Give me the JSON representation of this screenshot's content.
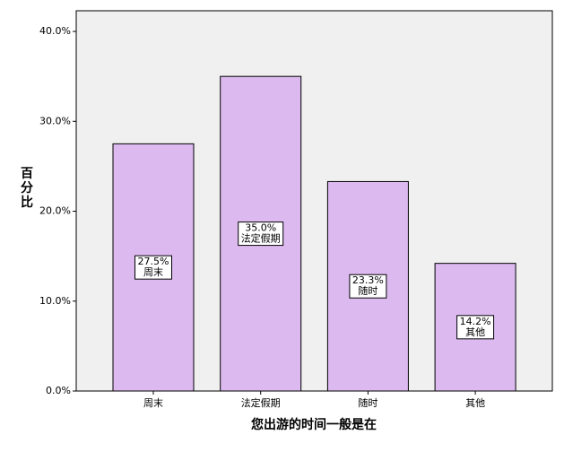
{
  "chart_data": {
    "type": "bar",
    "x_label": "您出游的时间一般是在",
    "y_label": "百分比",
    "categories": [
      "周末",
      "法定假期",
      "随时",
      "其他"
    ],
    "values": [
      27.5,
      35.0,
      23.3,
      14.2
    ],
    "value_labels": [
      "27.5%",
      "35.0%",
      "23.3%",
      "14.2%"
    ],
    "color": "#dcbaf0",
    "ylim": [
      0,
      42.3
    ],
    "yticks": [
      {
        "value": 0,
        "label": "0.0%"
      },
      {
        "value": 10,
        "label": "10.0%"
      },
      {
        "value": 20,
        "label": "20.0%"
      },
      {
        "value": 30,
        "label": "30.0%"
      },
      {
        "value": 40,
        "label": "40.0%"
      }
    ],
    "grid": false
  }
}
